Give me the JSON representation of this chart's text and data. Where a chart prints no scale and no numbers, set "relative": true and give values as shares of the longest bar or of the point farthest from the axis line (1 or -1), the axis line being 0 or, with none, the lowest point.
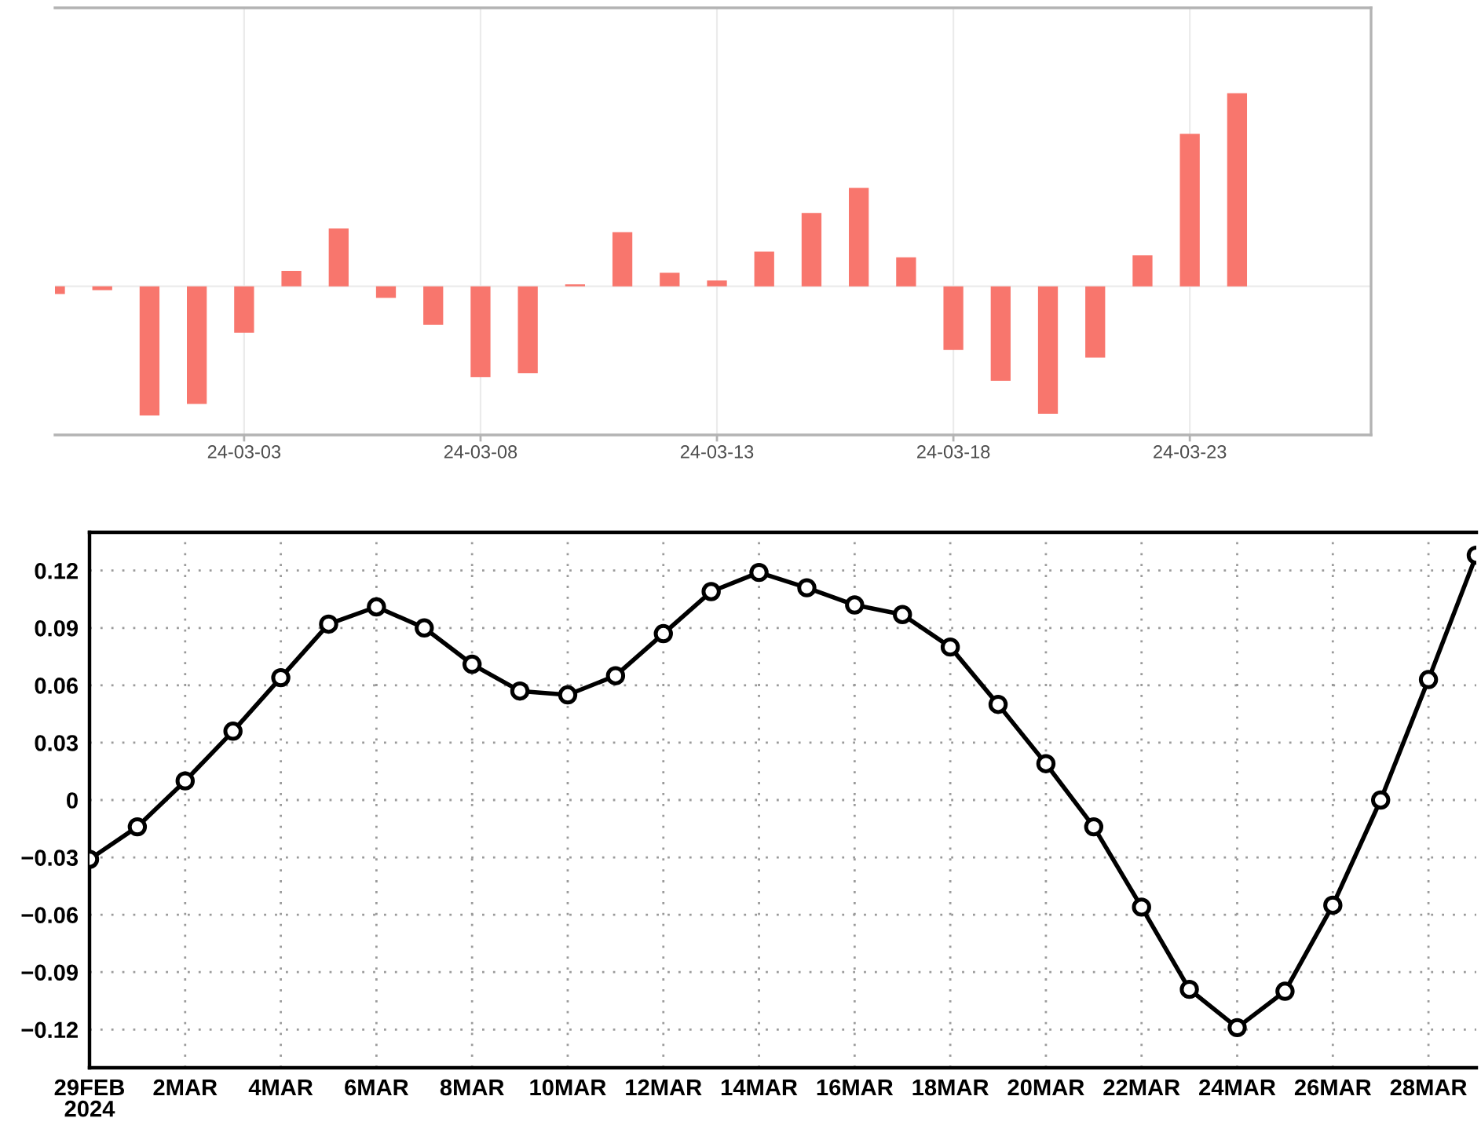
{
  "chart_data": [
    {
      "type": "bar",
      "relative": true,
      "color": "#f8766d",
      "grid": "x",
      "tick_labels": "x",
      "x": [
        "2024-02-28",
        "2024-02-29",
        "2024-03-01",
        "2024-03-02",
        "2024-03-03",
        "2024-03-04",
        "2024-03-05",
        "2024-03-06",
        "2024-03-07",
        "2024-03-08",
        "2024-03-09",
        "2024-03-10",
        "2024-03-11",
        "2024-03-12",
        "2024-03-13",
        "2024-03-14",
        "2024-03-15",
        "2024-03-16",
        "2024-03-17",
        "2024-03-18",
        "2024-03-19",
        "2024-03-20",
        "2024-03-21",
        "2024-03-22",
        "2024-03-23",
        "2024-03-24"
      ],
      "values": [
        -0.04,
        -0.02,
        -0.67,
        -0.61,
        -0.24,
        0.08,
        0.3,
        -0.06,
        -0.2,
        -0.47,
        -0.45,
        0.01,
        0.28,
        0.07,
        0.03,
        0.18,
        0.38,
        0.51,
        0.15,
        -0.33,
        -0.49,
        -0.66,
        -0.37,
        0.16,
        0.79,
        1.0
      ],
      "xlim": [
        "2024-02-28",
        "2024-03-26T20:00"
      ],
      "xticks": [
        {
          "value": "2024-03-03",
          "label": "24-03-03"
        },
        {
          "value": "2024-03-08",
          "label": "24-03-08"
        },
        {
          "value": "2024-03-13",
          "label": "24-03-13"
        },
        {
          "value": "2024-03-18",
          "label": "24-03-18"
        },
        {
          "value": "2024-03-23",
          "label": "24-03-23"
        }
      ]
    },
    {
      "type": "line",
      "color": "#000000",
      "marker": "circle",
      "line_style": "solid",
      "grid": true,
      "x": [
        "2024-02-29",
        "2024-03-01",
        "2024-03-02",
        "2024-03-03",
        "2024-03-04",
        "2024-03-05",
        "2024-03-06",
        "2024-03-07",
        "2024-03-08",
        "2024-03-09",
        "2024-03-10",
        "2024-03-11",
        "2024-03-12",
        "2024-03-13",
        "2024-03-14",
        "2024-03-15",
        "2024-03-16",
        "2024-03-17",
        "2024-03-18",
        "2024-03-19",
        "2024-03-20",
        "2024-03-21",
        "2024-03-22",
        "2024-03-23",
        "2024-03-24",
        "2024-03-25",
        "2024-03-26",
        "2024-03-27",
        "2024-03-28",
        "2024-03-29"
      ],
      "values": [
        -0.031,
        -0.014,
        0.01,
        0.036,
        0.064,
        0.092,
        0.101,
        0.09,
        0.071,
        0.057,
        0.055,
        0.065,
        0.087,
        0.109,
        0.119,
        0.111,
        0.102,
        0.097,
        0.08,
        0.05,
        0.019,
        -0.014,
        -0.056,
        -0.099,
        -0.119,
        -0.1,
        -0.055,
        0.0,
        0.063,
        0.128
      ],
      "xlim": [
        "2024-02-29",
        "2024-03-29"
      ],
      "xticks": [
        {
          "value": "2024-02-29",
          "label": "29FEB\n2024"
        },
        {
          "value": "2024-03-02",
          "label": "2MAR"
        },
        {
          "value": "2024-03-04",
          "label": "4MAR"
        },
        {
          "value": "2024-03-06",
          "label": "6MAR"
        },
        {
          "value": "2024-03-08",
          "label": "8MAR"
        },
        {
          "value": "2024-03-10",
          "label": "10MAR"
        },
        {
          "value": "2024-03-12",
          "label": "12MAR"
        },
        {
          "value": "2024-03-14",
          "label": "14MAR"
        },
        {
          "value": "2024-03-16",
          "label": "16MAR"
        },
        {
          "value": "2024-03-18",
          "label": "18MAR"
        },
        {
          "value": "2024-03-20",
          "label": "20MAR"
        },
        {
          "value": "2024-03-22",
          "label": "22MAR"
        },
        {
          "value": "2024-03-24",
          "label": "24MAR"
        },
        {
          "value": "2024-03-26",
          "label": "26MAR"
        },
        {
          "value": "2024-03-28",
          "label": "28MAR"
        }
      ],
      "ylim": [
        -0.14,
        0.14
      ],
      "yticks": [
        {
          "value": -0.12,
          "label": "−0.12"
        },
        {
          "value": -0.09,
          "label": "−0.09"
        },
        {
          "value": -0.06,
          "label": "−0.06"
        },
        {
          "value": -0.03,
          "label": "−0.03"
        },
        0,
        0.03,
        0.06,
        0.09,
        0.12
      ]
    }
  ]
}
